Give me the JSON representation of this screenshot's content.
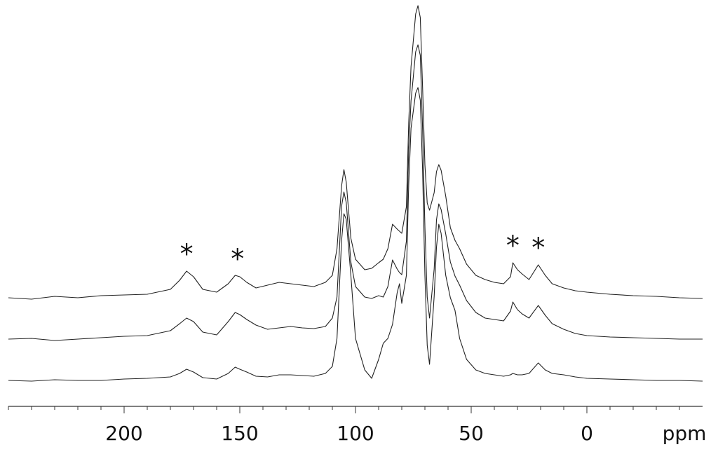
{
  "chart_data": {
    "type": "line",
    "x_label": "ppm",
    "x": [
      250,
      240,
      230,
      220,
      210,
      200,
      190,
      180,
      176,
      173,
      170,
      166,
      160,
      155,
      152,
      150,
      147,
      143,
      138,
      133,
      128,
      123,
      118,
      113,
      110,
      108,
      106,
      105,
      104,
      102,
      100,
      96,
      93,
      90,
      88,
      86,
      84,
      82,
      81,
      80,
      78,
      77,
      76,
      74,
      73,
      72,
      71,
      70,
      69,
      68,
      66,
      65,
      64,
      63,
      61,
      59,
      57,
      55,
      52,
      48,
      44,
      40,
      36,
      33,
      32,
      30,
      28,
      25,
      21,
      18,
      15,
      10,
      5,
      0,
      -10,
      -20,
      -30,
      -40,
      -50
    ],
    "series": [
      {
        "color": "#222222",
        "values": [
          0,
          -2,
          2,
          0,
          3,
          4,
          5,
          12,
          25,
          38,
          30,
          12,
          8,
          20,
          32,
          30,
          22,
          14,
          18,
          22,
          20,
          18,
          16,
          22,
          32,
          70,
          160,
          183,
          165,
          85,
          55,
          40,
          42,
          50,
          55,
          70,
          105,
          98,
          95,
          92,
          130,
          250,
          330,
          405,
          417,
          400,
          300,
          190,
          135,
          125,
          150,
          180,
          190,
          182,
          145,
          100,
          82,
          70,
          48,
          32,
          26,
          22,
          20,
          30,
          50,
          40,
          34,
          26,
          47,
          32,
          20,
          14,
          10,
          8,
          5,
          3,
          2,
          0,
          -1
        ]
      },
      {
        "color": "#222222",
        "values": [
          0,
          1,
          -2,
          0,
          2,
          4,
          5,
          12,
          22,
          30,
          25,
          10,
          6,
          25,
          38,
          35,
          28,
          20,
          14,
          16,
          18,
          16,
          15,
          18,
          30,
          60,
          190,
          210,
          195,
          110,
          75,
          60,
          58,
          62,
          60,
          75,
          113,
          100,
          95,
          92,
          140,
          270,
          340,
          410,
          420,
          405,
          300,
          160,
          60,
          30,
          100,
          170,
          193,
          185,
          150,
          110,
          90,
          77,
          55,
          38,
          30,
          28,
          26,
          40,
          53,
          42,
          36,
          30,
          48,
          34,
          22,
          14,
          8,
          5,
          3,
          2,
          1,
          0,
          0
        ]
      },
      {
        "color": "#222222",
        "values": [
          0,
          -1,
          1,
          0,
          0,
          2,
          3,
          5,
          10,
          16,
          12,
          4,
          2,
          10,
          19,
          16,
          12,
          6,
          5,
          8,
          8,
          7,
          6,
          10,
          20,
          60,
          200,
          238,
          230,
          150,
          60,
          15,
          3,
          30,
          53,
          60,
          80,
          125,
          138,
          110,
          150,
          280,
          360,
          410,
          418,
          400,
          300,
          150,
          50,
          23,
          120,
          190,
          223,
          210,
          150,
          118,
          100,
          60,
          30,
          15,
          10,
          8,
          6,
          8,
          10,
          8,
          8,
          10,
          25,
          15,
          10,
          8,
          5,
          3,
          2,
          1,
          0,
          0,
          -1
        ]
      }
    ],
    "xlim": [
      250,
      -50
    ],
    "xticks": [
      200,
      150,
      100,
      50,
      0
    ],
    "xminorticks": [
      250,
      240,
      230,
      220,
      210,
      190,
      180,
      170,
      160,
      140,
      130,
      120,
      110,
      90,
      80,
      70,
      60,
      40,
      30,
      20,
      10,
      -10,
      -20,
      -30,
      -40
    ],
    "ylim": [
      0,
      420
    ],
    "annotations": [
      {
        "text": "*",
        "x": 173
      },
      {
        "text": "*",
        "x": 151
      },
      {
        "text": "*",
        "x": 32
      },
      {
        "text": "*",
        "x": 21
      }
    ]
  }
}
